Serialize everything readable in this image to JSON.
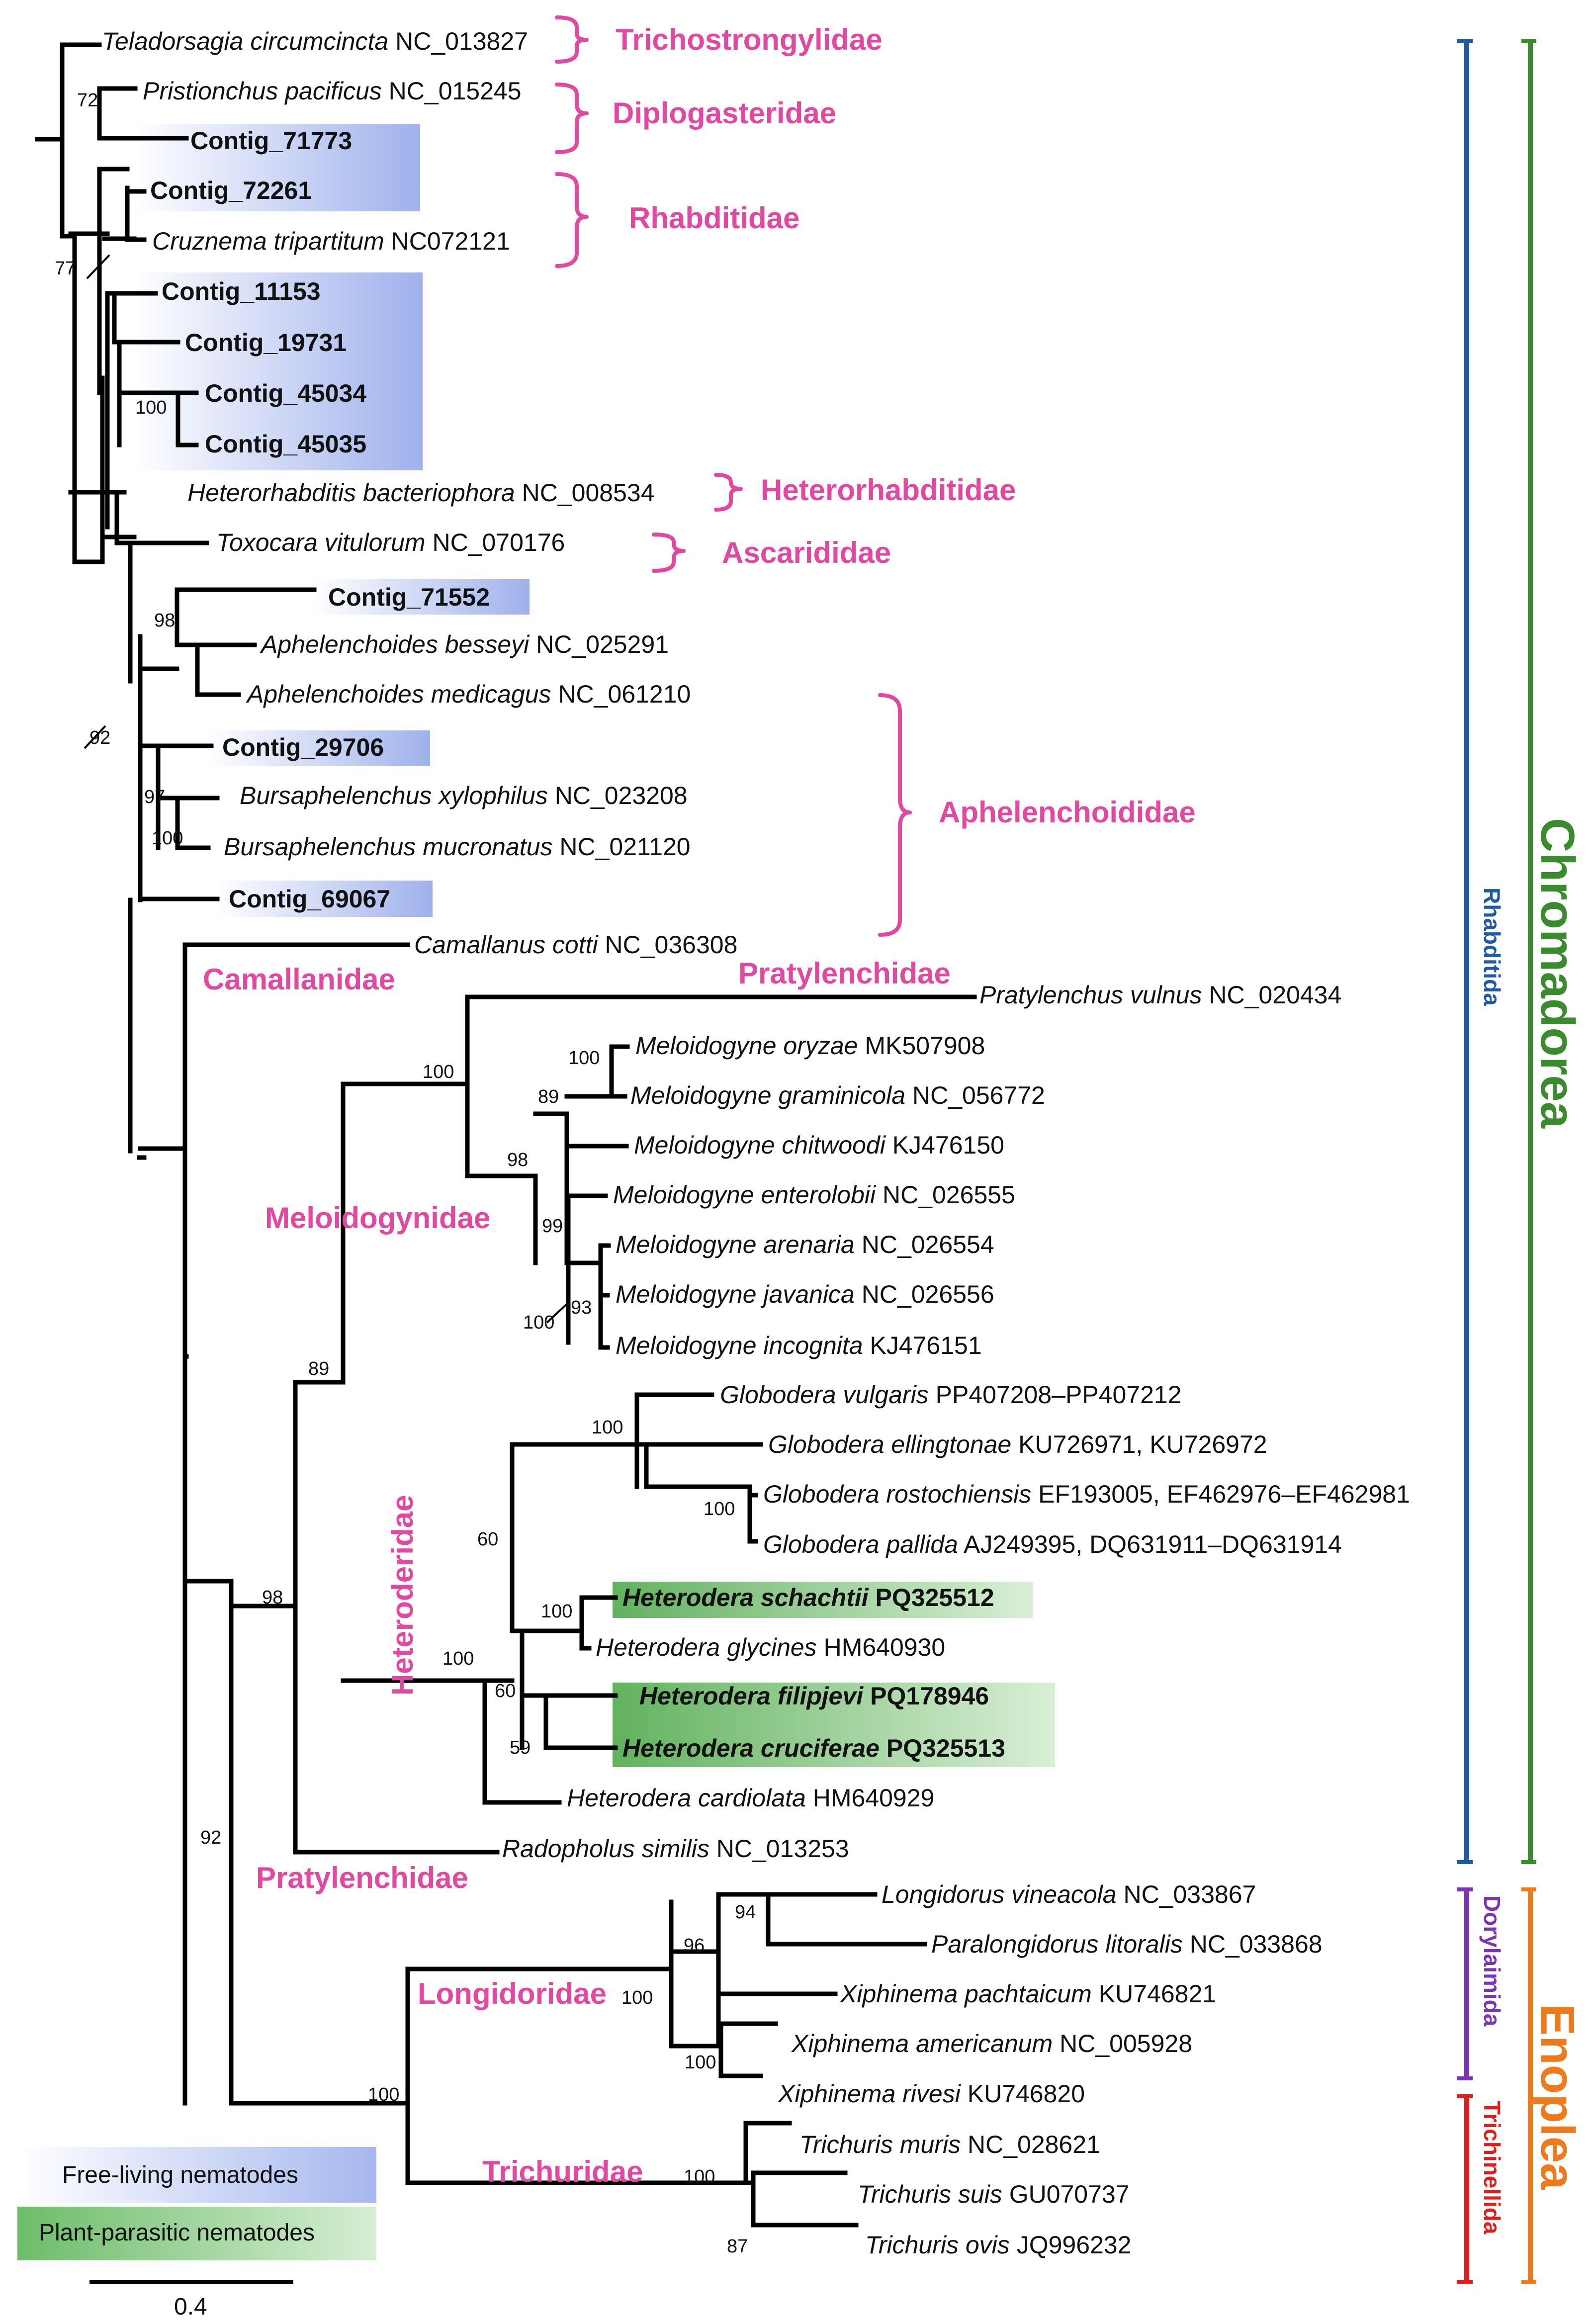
{
  "colors": {
    "family": "#e0499f",
    "chromadorea": "#3a8a2e",
    "rhabditida": "#1f5aa6",
    "enoplea": "#ee7a1b",
    "dorylaimida": "#7b34b3",
    "trichinellida": "#e11d1d",
    "free_living": "#a8b8ee",
    "plant_parasitic": "#9ed49b"
  },
  "taxa": [
    {
      "name": "Teladorsagia circumcincta",
      "acc": "NC_013827"
    },
    {
      "name": "Pristionchus pacificus",
      "acc": "NC_015245"
    },
    {
      "name": "Contig_71773",
      "acc": ""
    },
    {
      "name": "Contig_72261",
      "acc": ""
    },
    {
      "name": "Cruznema tripartitum",
      "acc": "NC072121"
    },
    {
      "name": "Contig_11153",
      "acc": ""
    },
    {
      "name": "Contig_19731",
      "acc": ""
    },
    {
      "name": "Contig_45034",
      "acc": ""
    },
    {
      "name": "Contig_45035",
      "acc": ""
    },
    {
      "name": "Heterorhabditis bacteriophora",
      "acc": "NC_008534"
    },
    {
      "name": "Toxocara vitulorum",
      "acc": "NC_070176"
    },
    {
      "name": "Contig_71552",
      "acc": ""
    },
    {
      "name": "Aphelenchoides besseyi",
      "acc": "NC_025291"
    },
    {
      "name": "Aphelenchoides medicagus",
      "acc": "NC_061210"
    },
    {
      "name": "Contig_29706",
      "acc": ""
    },
    {
      "name": "Bursaphelenchus xylophilus",
      "acc": " NC_023208"
    },
    {
      "name": "Bursaphelenchus mucronatus",
      "acc": "NC_021120"
    },
    {
      "name": "Contig_69067",
      "acc": ""
    },
    {
      "name": "Camallanus cotti",
      "acc": "NC_036308"
    },
    {
      "name": "Pratylenchus vulnus",
      "acc": "NC_020434"
    },
    {
      "name": "Meloidogyne oryzae",
      "acc": "MK507908"
    },
    {
      "name": "Meloidogyne graminicola",
      "acc": "NC_056772"
    },
    {
      "name": "Meloidogyne chitwoodi",
      "acc": "KJ476150"
    },
    {
      "name": "Meloidogyne enterolobii",
      "acc": "NC_026555"
    },
    {
      "name": "Meloidogyne arenaria",
      "acc": "NC_026554"
    },
    {
      "name": "Meloidogyne javanica",
      "acc": "NC_026556"
    },
    {
      "name": "Meloidogyne incognita",
      "acc": "KJ476151"
    },
    {
      "name": "Globodera vulgaris",
      "acc": "PP407208–PP407212"
    },
    {
      "name": "Globodera ellingtonae",
      "acc": "KU726971, KU726972"
    },
    {
      "name": "Globodera rostochiensis",
      "acc": "EF193005, EF462976–EF462981"
    },
    {
      "name": "Globodera pallida",
      "acc": "AJ249395, DQ631911–DQ631914"
    },
    {
      "name": "Heterodera schachtii",
      "acc": "PQ325512"
    },
    {
      "name": "Heterodera glycines",
      "acc": "HM640930"
    },
    {
      "name": "Heterodera filipjevi",
      "acc": "PQ178946"
    },
    {
      "name": "Heterodera cruciferae",
      "acc": "PQ325513"
    },
    {
      "name": "Heterodera cardiolata",
      "acc": "HM640929"
    },
    {
      "name": "Radopholus similis",
      "acc": "NC_013253"
    },
    {
      "name": "Longidorus vineacola",
      "acc": "NC_033867"
    },
    {
      "name": "Paralongidorus litoralis",
      "acc": "NC_033868"
    },
    {
      "name": "Xiphinema pachtaicum",
      "acc": "KU746821"
    },
    {
      "name": "Xiphinema americanum",
      "acc": "NC_005928"
    },
    {
      "name": "Xiphinema rivesi",
      "acc": "KU746820"
    },
    {
      "name": "Trichuris muris",
      "acc": "NC_028621"
    },
    {
      "name": "Trichuris suis",
      "acc": "GU070737"
    },
    {
      "name": "Trichuris ovis",
      "acc": "JQ996232"
    }
  ],
  "support": [
    "72",
    "77",
    "100",
    "98",
    "92",
    "97",
    "100",
    "100",
    "100",
    "89",
    "98",
    "99",
    "93",
    "100",
    "89",
    "100",
    "100",
    "60",
    "100",
    "100",
    "60",
    "59",
    "98",
    "92",
    "94",
    "96",
    "100",
    "100",
    "100",
    "100",
    "87"
  ],
  "families": [
    "Trichostrongylidae",
    "Diplogasteridae",
    "Rhabditidae",
    "Heterorhabditidae",
    "Ascarididae",
    "Aphelenchoididae",
    "Camallanidae",
    "Pratylenchidae",
    "Meloidogynidae",
    "Heteroderidae",
    "Pratylenchidae",
    "Longidoridae",
    "Trichuridae"
  ],
  "orders": [
    "Rhabditida",
    "Dorylaimida",
    "Trichinellida"
  ],
  "classes": [
    "Chromadorea",
    "Enoplea"
  ],
  "legend": {
    "free_living": "Free-living nematodes",
    "plant_parasitic": "Plant-parasitic nematodes"
  },
  "scale_bar": "0.4"
}
